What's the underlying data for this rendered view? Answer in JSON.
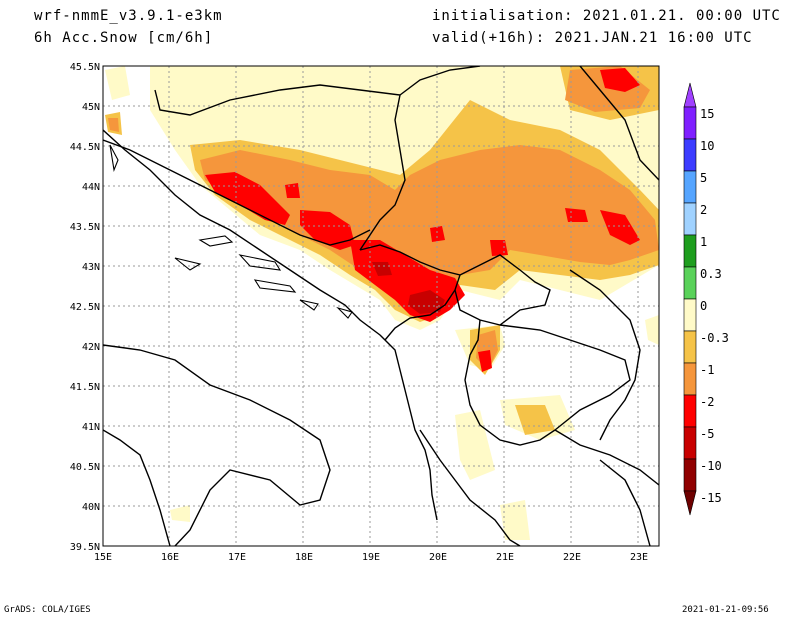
{
  "header": {
    "model": "wrf-nmmE_v3.9.1-e3km",
    "field": "6h Acc.Snow [cm/6h]",
    "init": "initialisation: 2021.01.21.  00:00 UTC",
    "valid": "valid(+16h): 2021.JAN.21 16:00 UTC"
  },
  "footer": {
    "left": "GrADS: COLA/IGES",
    "right": "2021-01-21-09:56"
  },
  "axes": {
    "lat_ticks": [
      "45.5N",
      "45N",
      "44.5N",
      "44N",
      "43.5N",
      "43N",
      "42.5N",
      "42N",
      "41.5N",
      "41N",
      "40.5N",
      "40N",
      "39.5N"
    ],
    "lon_ticks": [
      "15E",
      "16E",
      "17E",
      "18E",
      "19E",
      "20E",
      "21E",
      "22E",
      "23E"
    ],
    "lat_range": [
      39.5,
      45.5
    ],
    "lon_range": [
      15,
      23.3
    ]
  },
  "colorbar": {
    "labels": [
      "15",
      "10",
      "5",
      "2",
      "1",
      "0.3",
      "0",
      "-0.3",
      "-1",
      "-2",
      "-5",
      "-10",
      "-15"
    ],
    "colors": [
      "#7f1fff",
      "#3c3cff",
      "#56a5ff",
      "#a0d2ff",
      "#1e9e1e",
      "#5ad25a",
      "#ffffff",
      "#fffac8",
      "#f5c348",
      "#f5963c",
      "#ff0000",
      "#c80000",
      "#900000"
    ],
    "top_arrow_color": "#a040ff",
    "bottom_arrow_color": "#6e0000"
  },
  "map_colors": {
    "light": "#fffac8",
    "yellow": "#f5c348",
    "orange": "#f5963c",
    "red": "#ff0000",
    "darkred": "#c80000"
  }
}
